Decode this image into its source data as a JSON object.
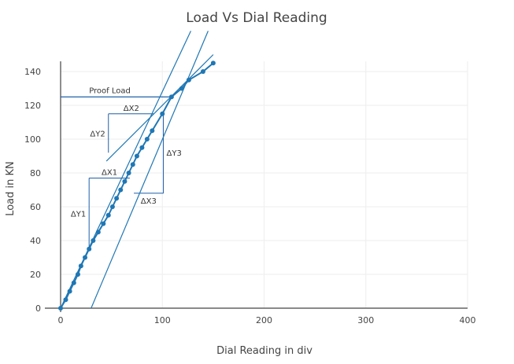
{
  "chart_data": {
    "type": "line",
    "title": "Load Vs Dial Reading",
    "xlabel": "Dial Reading in div",
    "ylabel": "Load in KN",
    "xlim": [
      -2,
      400
    ],
    "ylim": [
      -2,
      146
    ],
    "xticks": [
      0,
      100,
      200,
      300,
      400
    ],
    "yticks": [
      0,
      20,
      40,
      60,
      80,
      100,
      120,
      140
    ],
    "grid": true,
    "colors": {
      "series": "#1f77b4",
      "annotation": "#1f5fa8",
      "grid": "#eeeeee",
      "axis": "#444444"
    },
    "series": [
      {
        "x": [
          0,
          5,
          9,
          13,
          17,
          20,
          24,
          28,
          32,
          37,
          42,
          47,
          51,
          55,
          59,
          63,
          67,
          71,
          75,
          80,
          85,
          90,
          100,
          109,
          119,
          126,
          140,
          150
        ],
        "y": [
          0,
          5,
          10,
          15,
          20,
          25,
          30,
          35,
          40,
          45,
          50,
          55,
          60,
          65,
          70,
          75,
          80,
          85,
          90,
          95,
          100,
          105,
          115,
          125,
          130,
          135,
          140,
          145
        ]
      }
    ],
    "tangent_lines": [
      {
        "x": [
          0,
          128
        ],
        "y": [
          0,
          164
        ]
      },
      {
        "x": [
          30,
          145
        ],
        "y": [
          0,
          164
        ]
      },
      {
        "x": [
          45,
          150
        ],
        "y": [
          87,
          150
        ]
      }
    ],
    "proof_load": {
      "label": "Proof Load",
      "y": 125,
      "x_end": 109
    },
    "annotations": [
      {
        "label": "ΔX1",
        "kind": "run",
        "x": [
          28,
          68
        ],
        "y": 77
      },
      {
        "label": "ΔY1",
        "kind": "rise",
        "x": 28,
        "y": [
          35,
          77
        ]
      },
      {
        "label": "ΔX2",
        "kind": "run",
        "x": [
          47,
          92
        ],
        "y": 115
      },
      {
        "label": "ΔY2",
        "kind": "rise",
        "x": 47,
        "y": [
          92,
          115
        ]
      },
      {
        "label": "ΔX3",
        "kind": "run",
        "x": [
          72,
          101
        ],
        "y": 68
      },
      {
        "label": "ΔY3",
        "kind": "rise",
        "x": 101,
        "y": [
          68,
          116
        ]
      }
    ]
  }
}
